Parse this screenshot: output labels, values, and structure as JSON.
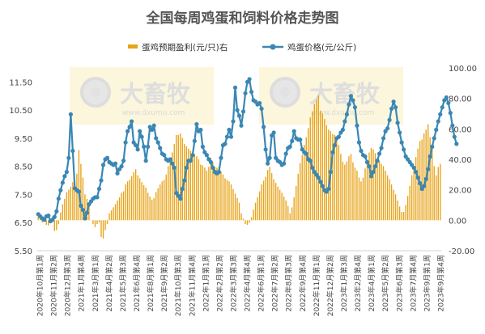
{
  "chart_data": {
    "type": "bar",
    "title": "全国每周鸡蛋和饲料价格走势图",
    "grid": false,
    "legend_position": "top",
    "series": [
      {
        "name": "蛋鸡预期盈利(元/只)右",
        "type": "bar",
        "axis": "right",
        "color": "#E8A317",
        "values": [
          2.5,
          1.5,
          -1.5,
          1.0,
          -3.0,
          -3.5,
          0.0,
          2.5,
          -7.0,
          -6.5,
          -2.5,
          5.0,
          10.5,
          14.0,
          18.5,
          20.0,
          22.0,
          25.0,
          22.5,
          30.5,
          46.0,
          37.0,
          28.0,
          17.0,
          14.0,
          9.5,
          0.0,
          -2.5,
          -4.5,
          -2.5,
          -1.5,
          -11.0,
          -12.0,
          -6.5,
          -2.5,
          4.5,
          6.5,
          8.5,
          10.5,
          13.0,
          15.0,
          18.0,
          19.0,
          23.5,
          25.5,
          26.5,
          29.0,
          31.5,
          33.5,
          29.5,
          27.5,
          25.0,
          23.0,
          21.5,
          18.0,
          15.5,
          13.5,
          14.5,
          18.5,
          21.0,
          23.5,
          25.5,
          26.5,
          30.0,
          35.5,
          40.5,
          44.5,
          50.0,
          56.0,
          56.0,
          57.0,
          54.0,
          50.0,
          48.5,
          47.0,
          45.5,
          44.0,
          43.5,
          42.0,
          40.0,
          36.5,
          36.0,
          34.5,
          32.5,
          35.0,
          41.0,
          38.0,
          35.0,
          34.5,
          35.0,
          32.0,
          30.0,
          27.5,
          26.5,
          25.5,
          23.5,
          20.5,
          17.5,
          14.5,
          11.5,
          4.5,
          1.0,
          -2.5,
          -3.0,
          -1.5,
          2.0,
          7.0,
          11.5,
          15.0,
          19.0,
          23.5,
          26.0,
          28.5,
          33.0,
          35.0,
          31.0,
          27.0,
          24.5,
          22.0,
          20.0,
          18.0,
          15.5,
          13.0,
          9.5,
          4.5,
          8.5,
          15.0,
          22.5,
          30.5,
          37.5,
          43.0,
          49.5,
          54.5,
          60.5,
          67.5,
          71.5,
          76.5,
          79.0,
          82.0,
          72.0,
          70.0,
          66.5,
          62.5,
          59.5,
          58.5,
          56.5,
          56.0,
          55.0,
          49.5,
          43.5,
          38.5,
          36.5,
          38.5,
          42.0,
          43.5,
          38.0,
          34.5,
          32.5,
          28.0,
          25.5,
          28.0,
          34.0,
          39.0,
          44.5,
          47.5,
          46.5,
          44.0,
          40.5,
          39.0,
          37.0,
          35.5,
          32.5,
          29.5,
          27.0,
          23.5,
          20.0,
          17.0,
          13.0,
          9.0,
          5.5,
          5.5,
          10.0,
          16.0,
          22.5,
          29.5,
          35.5,
          41.5,
          47.0,
          52.0,
          53.0,
          57.0,
          59.5,
          63.0,
          54.5,
          47.5,
          35.5,
          29.5,
          35.0,
          37.0
        ]
      },
      {
        "name": "鸡蛋价格(元/公斤)",
        "type": "line",
        "axis": "left",
        "color": "#3A87B4",
        "values": [
          6.8,
          6.72,
          6.65,
          6.6,
          6.72,
          6.75,
          6.55,
          6.6,
          6.7,
          6.9,
          7.35,
          7.65,
          7.92,
          8.15,
          8.3,
          8.8,
          10.35,
          9.05,
          7.72,
          7.65,
          7.6,
          7.1,
          6.95,
          6.65,
          6.85,
          7.15,
          7.25,
          7.35,
          7.4,
          7.4,
          7.7,
          8.0,
          8.55,
          8.75,
          8.8,
          8.65,
          8.6,
          8.55,
          8.6,
          8.25,
          8.4,
          8.5,
          8.7,
          9.35,
          9.75,
          9.9,
          10.1,
          9.35,
          9.25,
          9.1,
          9.75,
          9.55,
          9.2,
          8.7,
          9.2,
          9.9,
          9.8,
          9.95,
          9.5,
          9.35,
          9.15,
          8.95,
          8.9,
          8.75,
          8.7,
          8.75,
          8.6,
          8.45,
          7.55,
          7.45,
          7.35,
          7.7,
          8.0,
          8.45,
          8.7,
          8.7,
          8.9,
          9.4,
          10.0,
          9.75,
          9.8,
          9.2,
          9.0,
          8.9,
          8.75,
          8.65,
          8.45,
          8.3,
          8.25,
          8.3,
          8.8,
          9.25,
          9.3,
          9.55,
          9.8,
          9.55,
          10.1,
          11.3,
          10.5,
          10.3,
          9.95,
          10.45,
          11.1,
          11.5,
          11.6,
          11.15,
          10.85,
          10.8,
          10.7,
          10.75,
          10.55,
          9.9,
          9.1,
          8.6,
          8.8,
          9.6,
          9.7,
          8.8,
          8.7,
          8.65,
          8.55,
          8.6,
          8.95,
          9.15,
          9.2,
          9.4,
          9.75,
          9.5,
          9.45,
          9.45,
          9.1,
          9.0,
          8.95,
          8.75,
          8.7,
          8.45,
          8.3,
          8.2,
          8.1,
          7.95,
          7.8,
          7.65,
          7.6,
          7.7,
          8.3,
          9.0,
          9.25,
          9.5,
          9.55,
          9.7,
          9.8,
          10.1,
          10.35,
          10.7,
          11.0,
          10.85,
          10.6,
          9.95,
          9.35,
          9.05,
          8.9,
          8.85,
          8.65,
          8.5,
          8.15,
          8.3,
          8.5,
          8.7,
          8.95,
          9.15,
          9.5,
          9.75,
          9.85,
          10.15,
          10.55,
          10.8,
          10.6,
          10.05,
          9.7,
          9.35,
          9.1,
          8.85,
          8.75,
          8.65,
          8.55,
          8.45,
          8.3,
          8.1,
          7.9,
          7.7,
          7.8,
          8.05,
          8.4,
          8.85,
          9.2,
          9.5,
          9.8,
          10.1,
          10.35,
          10.6,
          10.85,
          10.95,
          10.75,
          10.4,
          9.95,
          9.55,
          9.3
        ]
      }
    ],
    "left_axis": {
      "min": 5.5,
      "max": 12,
      "ticks": [
        "5.50",
        "6.50",
        "7.50",
        "8.50",
        "9.50",
        "10.50",
        "11.50"
      ]
    },
    "right_axis": {
      "min": -20,
      "max": 100,
      "ticks": [
        "-20.00",
        "0.00",
        "20.00",
        "40.00",
        "60.00",
        "80.00",
        "100.00"
      ]
    },
    "x_tick_labels": [
      "2020年10月第1周",
      "2020年11月第2周",
      "2020年12月第3周",
      "2021年1月第4周",
      "2021年3月第1周",
      "2021年4月第2周",
      "2021年5月第3周",
      "2021年6月第4周",
      "2021年8月第1周",
      "2021年9月第2周",
      "2021年10月第3周",
      "2021年11月第4周",
      "2022年1月第1周",
      "2022年2月第2周",
      "2022年3月第3周",
      "2022年4月第4周",
      "2022年6月第1周",
      "2022年7月第2周",
      "2022年8月第3周",
      "2022年9月第4周",
      "2022年11月第1周",
      "2022年12月第2周",
      "2023年1月第3周",
      "2023年2月第4周",
      "2023年4月第1周",
      "2023年5月第2周",
      "2023年6月第3周",
      "2023年7月第4周",
      "2023年9月第1周",
      "2023年9月第4周"
    ],
    "watermark": {
      "brand": "大畜牧",
      "domain": "www.dxumu.com"
    }
  }
}
